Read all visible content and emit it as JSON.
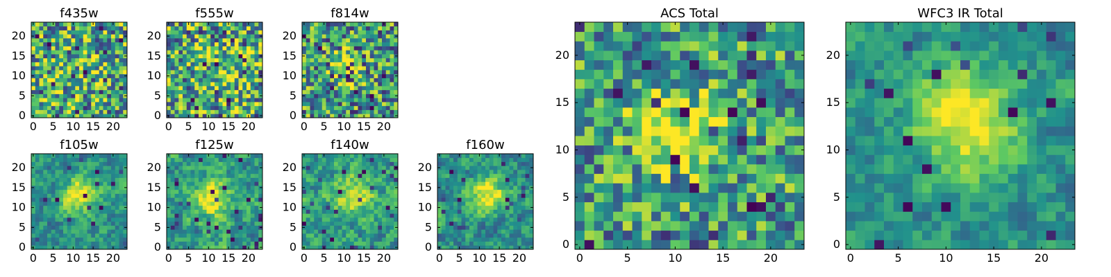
{
  "figure": {
    "background": "#ffffff"
  },
  "colormap": [
    "#440154",
    "#3b528b",
    "#21918c",
    "#5ec962",
    "#fde725"
  ],
  "chart_data": [
    {
      "type": "heatmap",
      "title": "f435w",
      "grid": "24x24",
      "xlim": [
        -0.5,
        23.5
      ],
      "ylim": [
        -0.5,
        23.5
      ],
      "xticks": [
        "0",
        "5",
        "10",
        "15",
        "20"
      ],
      "yticks": [
        "0",
        "5",
        "10",
        "15",
        "20"
      ],
      "pattern": {
        "seed": 11,
        "peak": 0.18,
        "peak_center": [
          12,
          12
        ],
        "peak_width": 3.5,
        "noise": 0.55,
        "smooth": 0,
        "mean": 0.62,
        "dark_fraction": 0.06
      }
    },
    {
      "type": "heatmap",
      "title": "f555w",
      "grid": "24x24",
      "xlim": [
        -0.5,
        23.5
      ],
      "ylim": [
        -0.5,
        23.5
      ],
      "xticks": [
        "0",
        "5",
        "10",
        "15",
        "20"
      ],
      "yticks": [
        "0",
        "5",
        "10",
        "15",
        "20"
      ],
      "pattern": {
        "seed": 23,
        "peak": 0.2,
        "peak_center": [
          12,
          12
        ],
        "peak_width": 3.5,
        "noise": 0.55,
        "smooth": 0,
        "mean": 0.62,
        "dark_fraction": 0.06
      }
    },
    {
      "type": "heatmap",
      "title": "f814w",
      "grid": "24x24",
      "xlim": [
        -0.5,
        23.5
      ],
      "ylim": [
        -0.5,
        23.5
      ],
      "xticks": [
        "0",
        "5",
        "10",
        "15",
        "20"
      ],
      "yticks": [
        "0",
        "5",
        "10",
        "15",
        "20"
      ],
      "pattern": {
        "seed": 37,
        "peak": 0.45,
        "peak_center": [
          11,
          12
        ],
        "peak_width": 2.8,
        "noise": 0.5,
        "smooth": 0,
        "mean": 0.55,
        "dark_fraction": 0.06
      }
    },
    {
      "type": "heatmap",
      "title": "f105w",
      "grid": "24x24",
      "xlim": [
        -0.5,
        23.5
      ],
      "ylim": [
        -0.5,
        23.5
      ],
      "xticks": [
        "0",
        "5",
        "10",
        "15",
        "20"
      ],
      "yticks": [
        "0",
        "5",
        "10",
        "15",
        "20"
      ],
      "pattern": {
        "seed": 41,
        "peak": 0.5,
        "peak_center": [
          12,
          13
        ],
        "peak_width": 3.2,
        "noise": 0.42,
        "smooth": 1,
        "mean": 0.5,
        "dark_fraction": 0.04
      }
    },
    {
      "type": "heatmap",
      "title": "f125w",
      "grid": "24x24",
      "xlim": [
        -0.5,
        23.5
      ],
      "ylim": [
        -0.5,
        23.5
      ],
      "xticks": [
        "0",
        "5",
        "10",
        "15",
        "20"
      ],
      "yticks": [
        "0",
        "5",
        "10",
        "15",
        "20"
      ],
      "pattern": {
        "seed": 53,
        "peak": 0.4,
        "peak_center": [
          11,
          12
        ],
        "peak_width": 3.5,
        "noise": 0.45,
        "smooth": 1,
        "mean": 0.55,
        "dark_fraction": 0.04
      }
    },
    {
      "type": "heatmap",
      "title": "f140w",
      "grid": "24x24",
      "xlim": [
        -0.5,
        23.5
      ],
      "ylim": [
        -0.5,
        23.5
      ],
      "xticks": [
        "0",
        "5",
        "10",
        "15",
        "20"
      ],
      "yticks": [
        "0",
        "5",
        "10",
        "15",
        "20"
      ],
      "pattern": {
        "seed": 67,
        "peak": 0.35,
        "peak_center": [
          12,
          13
        ],
        "peak_width": 3.5,
        "noise": 0.45,
        "smooth": 1,
        "mean": 0.55,
        "dark_fraction": 0.04
      }
    },
    {
      "type": "heatmap",
      "title": "f160w",
      "grid": "24x24",
      "xlim": [
        -0.5,
        23.5
      ],
      "ylim": [
        -0.5,
        23.5
      ],
      "xticks": [
        "0",
        "5",
        "10",
        "15",
        "20"
      ],
      "yticks": [
        "0",
        "5",
        "10",
        "15",
        "20"
      ],
      "pattern": {
        "seed": 79,
        "peak": 0.55,
        "peak_center": [
          12,
          13
        ],
        "peak_width": 3.0,
        "noise": 0.42,
        "smooth": 1,
        "mean": 0.5,
        "dark_fraction": 0.04
      }
    },
    {
      "type": "heatmap",
      "title": "ACS Total",
      "grid": "24x24",
      "xlim": [
        -0.5,
        23.5
      ],
      "ylim": [
        -0.5,
        23.5
      ],
      "xticks": [
        "0",
        "5",
        "10",
        "15",
        "20"
      ],
      "yticks": [
        "0",
        "5",
        "10",
        "15",
        "20"
      ],
      "pattern": {
        "seed": 97,
        "peak": 0.45,
        "peak_center": [
          10,
          12
        ],
        "peak_width": 3.2,
        "noise": 0.45,
        "smooth": 0,
        "mean": 0.55,
        "dark_fraction": 0.05
      }
    },
    {
      "type": "heatmap",
      "title": "WFC3 IR Total",
      "grid": "24x24",
      "xlim": [
        -0.5,
        23.5
      ],
      "ylim": [
        -0.5,
        23.5
      ],
      "xticks": [
        "0",
        "5",
        "10",
        "15",
        "20"
      ],
      "yticks": [
        "0",
        "5",
        "10",
        "15",
        "20"
      ],
      "pattern": {
        "seed": 113,
        "peak": 0.55,
        "peak_center": [
          12,
          13
        ],
        "peak_width": 3.8,
        "noise": 0.35,
        "smooth": 1,
        "mean": 0.5,
        "dark_fraction": 0.035
      }
    }
  ]
}
